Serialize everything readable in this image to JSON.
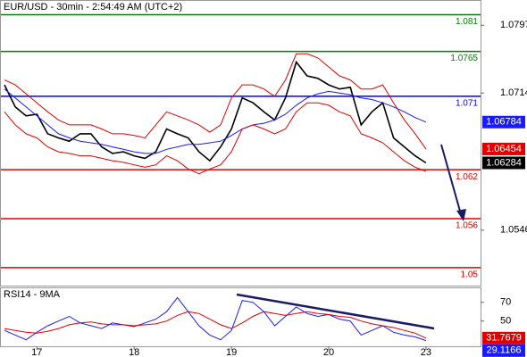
{
  "chart_data": [
    {
      "type": "line",
      "title": "EUR/USD - 30min - 2:54:49 AM (UTC+2)",
      "categories": [
        null,
        null,
        null,
        "17",
        null,
        null,
        null,
        null,
        null,
        null,
        null,
        null,
        "18",
        null,
        null,
        null,
        null,
        null,
        null,
        null,
        null,
        "19",
        null,
        null,
        null,
        null,
        null,
        null,
        null,
        null,
        "20",
        null,
        null,
        null,
        null,
        null,
        null,
        null,
        null,
        "23"
      ],
      "ylim": [
        1.0478,
        1.0828
      ],
      "yticks": [
        1.0797,
        1.0714,
        1.0546
      ],
      "levels": [
        {
          "value": 1.081,
          "color": "#008000"
        },
        {
          "value": 1.0765,
          "color": "#008000"
        },
        {
          "value": 1.071,
          "color": "#0000ee"
        },
        {
          "value": 1.062,
          "color": "#e00000"
        },
        {
          "value": 1.056,
          "color": "#e00000"
        },
        {
          "value": 1.05,
          "color": "#e00000"
        }
      ],
      "series": [
        {
          "color": "#000000",
          "label_box": true,
          "values": [
            1.0724,
            1.0697,
            1.0686,
            1.0688,
            1.0664,
            1.0659,
            1.0655,
            1.0664,
            1.0664,
            1.0648,
            1.064,
            1.0642,
            1.0637,
            1.0634,
            1.0642,
            1.067,
            1.0664,
            1.0659,
            1.0642,
            1.0631,
            1.0648,
            1.067,
            1.0708,
            1.0702,
            1.0691,
            1.0681,
            1.0708,
            1.0752,
            1.0735,
            1.0732,
            1.0724,
            1.0719,
            1.0721,
            1.0675,
            1.0691,
            1.0702,
            1.0659,
            1.0648,
            1.0637,
            1.06284
          ]
        },
        {
          "color": "#1a1aff",
          "label_box": true,
          "values": [
            1.0719,
            1.0708,
            1.0697,
            1.0686,
            1.0675,
            1.0664,
            1.0659,
            1.0655,
            1.0653,
            1.0651,
            1.0648,
            1.0645,
            1.0642,
            1.064,
            1.064,
            1.0645,
            1.0648,
            1.0651,
            1.0651,
            1.0653,
            1.0655,
            1.0662,
            1.067,
            1.0675,
            1.0677,
            1.0681,
            1.0688,
            1.0699,
            1.0708,
            1.0713,
            1.0716,
            1.0714,
            1.0712,
            1.0708,
            1.0706,
            1.0702,
            1.0697,
            1.0691,
            1.0684,
            1.06784
          ]
        },
        {
          "color": "#e00000",
          "label_box": true,
          "values": [
            1.073,
            1.0724,
            1.0713,
            1.0702,
            1.0691,
            1.0681,
            1.0675,
            1.0675,
            1.0675,
            1.067,
            1.0664,
            1.0664,
            1.0662,
            1.0659,
            1.0675,
            1.0691,
            1.0686,
            1.0681,
            1.0675,
            1.0666,
            1.0675,
            1.0708,
            1.0724,
            1.0724,
            1.0719,
            1.071,
            1.073,
            1.0762,
            1.0762,
            1.0757,
            1.0746,
            1.0735,
            1.073,
            1.0719,
            1.0719,
            1.0724,
            1.0702,
            1.0681,
            1.0664,
            1.06454
          ]
        },
        {
          "color": "#e00000",
          "label_box": false,
          "values": [
            1.0691,
            1.0675,
            1.0664,
            1.0659,
            1.0648,
            1.0642,
            1.064,
            1.0637,
            1.0637,
            1.0634,
            1.0631,
            1.0629,
            1.0626,
            1.0623,
            1.0626,
            1.0637,
            1.0631,
            1.0621,
            1.0615,
            1.0621,
            1.0626,
            1.0642,
            1.067,
            1.0675,
            1.067,
            1.0664,
            1.067,
            1.0691,
            1.0702,
            1.0702,
            1.0699,
            1.0691,
            1.0686,
            1.0664,
            1.0659,
            1.0653,
            1.0642,
            1.0631,
            1.0623,
            1.0618
          ]
        }
      ]
    },
    {
      "type": "line",
      "title": "RSI14 - 9MA",
      "ylim": [
        23,
        86
      ],
      "yticks": [
        70,
        50
      ],
      "series": [
        {
          "color": "#1a1aff",
          "label_box": true,
          "values": [
            40,
            35,
            30,
            38,
            45,
            50,
            55,
            48,
            45,
            42,
            48,
            46,
            44,
            48,
            52,
            60,
            75,
            60,
            45,
            35,
            30,
            40,
            72,
            70,
            60,
            45,
            55,
            65,
            58,
            55,
            57,
            52,
            50,
            35,
            40,
            45,
            38,
            35,
            33,
            29.1166
          ]
        },
        {
          "color": "#e00000",
          "label_box": true,
          "values": [
            42,
            40,
            38,
            37,
            39,
            42,
            46,
            48,
            49,
            47,
            46,
            46,
            45,
            46,
            47,
            50,
            56,
            60,
            58,
            52,
            46,
            42,
            48,
            55,
            60,
            58,
            56,
            58,
            60,
            58,
            57,
            55,
            54,
            50,
            47,
            45,
            43,
            40,
            37,
            31.7679
          ]
        }
      ]
    }
  ]
}
